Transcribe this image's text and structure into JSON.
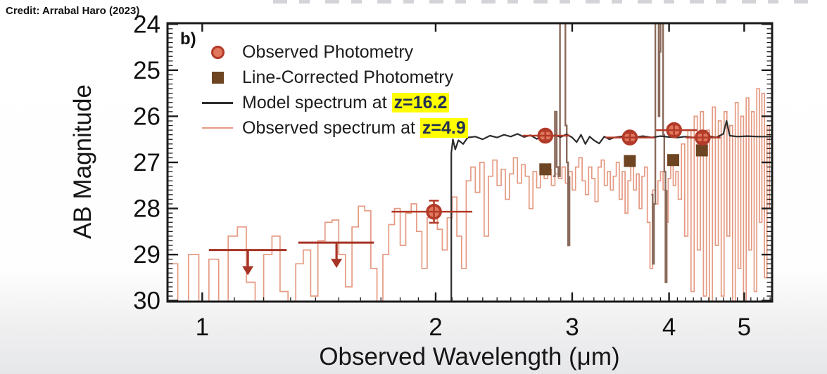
{
  "page": {
    "credit": "Credit: Arrabal Haro (2023)",
    "panel_label": "b)"
  },
  "chart_data": {
    "type": "line",
    "title": "",
    "xlabel": "Observed Wavelength (μm)",
    "ylabel": "AB Magnitude",
    "x_scale": "log",
    "xlim": [
      0.902,
      5.432
    ],
    "ylim": [
      30.02,
      23.98
    ],
    "y_axis_inverted": true,
    "grid": false,
    "legend_position": "upper-left-inside",
    "x_major_ticks": [
      1,
      2,
      3,
      4,
      5
    ],
    "x_minor_tick_step": 0.1,
    "y_major_ticks": [
      24,
      25,
      26,
      27,
      28,
      29,
      30
    ],
    "y_minor_tick_step": 0.1,
    "colors": {
      "observed_spectrum": "#e59a82",
      "emission_lines": "#8a695a",
      "model_spectrum": "#2d2d2d",
      "photometry_fill": "#e0775c",
      "photometry_edge": "#b23a28",
      "line_corrected": "#6d4522",
      "upper_limit": "#a63325",
      "highlight_bg": "#ffff00",
      "highlight_text": "#223055",
      "axis": "#1a1a1a"
    },
    "legend": [
      {
        "marker": "circle",
        "label": "Observed Photometry",
        "highlight": ""
      },
      {
        "marker": "square",
        "label": "Line-Corrected Photometry",
        "highlight": ""
      },
      {
        "marker": "line-dark",
        "label": "Model spectrum at ",
        "highlight": "z=16.2"
      },
      {
        "marker": "line-salmon",
        "label": "Observed spectrum at ",
        "highlight": "z=4.9"
      }
    ],
    "series": {
      "observed_spectrum": {
        "name": "Observed spectrum at z=4.9",
        "style": "step",
        "points": [
          [
            0.902,
            29.2
          ],
          [
            0.93,
            30.2
          ],
          [
            0.96,
            29.0
          ],
          [
            0.99,
            30.3
          ],
          [
            1.02,
            29.1
          ],
          [
            1.05,
            30.1
          ],
          [
            1.08,
            28.6
          ],
          [
            1.11,
            28.4
          ],
          [
            1.14,
            29.6
          ],
          [
            1.17,
            30.25
          ],
          [
            1.2,
            29.0
          ],
          [
            1.23,
            28.6
          ],
          [
            1.26,
            29.8
          ],
          [
            1.29,
            30.3
          ],
          [
            1.32,
            29.2
          ],
          [
            1.35,
            28.9
          ],
          [
            1.38,
            29.9
          ],
          [
            1.41,
            28.7
          ],
          [
            1.44,
            28.3
          ],
          [
            1.47,
            28.25
          ],
          [
            1.5,
            29.0
          ],
          [
            1.53,
            29.7
          ],
          [
            1.56,
            28.4
          ],
          [
            1.59,
            27.95
          ],
          [
            1.62,
            28.05
          ],
          [
            1.65,
            29.3
          ],
          [
            1.68,
            30.2
          ],
          [
            1.71,
            29.0
          ],
          [
            1.74,
            28.35
          ],
          [
            1.77,
            28.0
          ],
          [
            1.8,
            28.8
          ],
          [
            1.83,
            28.1
          ],
          [
            1.86,
            27.9
          ],
          [
            1.89,
            28.5
          ],
          [
            1.92,
            29.3
          ],
          [
            1.95,
            28.2
          ],
          [
            1.98,
            27.95
          ],
          [
            2.01,
            28.45
          ],
          [
            2.04,
            28.9
          ],
          [
            2.07,
            28.2
          ],
          [
            2.1,
            27.75
          ],
          [
            2.13,
            28.6
          ],
          [
            2.16,
            29.3
          ],
          [
            2.19,
            27.4
          ],
          [
            2.22,
            27.1
          ],
          [
            2.25,
            27.65
          ],
          [
            2.28,
            27.0
          ],
          [
            2.31,
            28.6
          ],
          [
            2.34,
            27.3
          ],
          [
            2.37,
            26.95
          ],
          [
            2.4,
            27.5
          ],
          [
            2.43,
            27.15
          ],
          [
            2.46,
            27.8
          ],
          [
            2.49,
            27.25
          ],
          [
            2.52,
            26.9
          ],
          [
            2.55,
            27.45
          ],
          [
            2.58,
            27.05
          ],
          [
            2.61,
            27.3
          ],
          [
            2.64,
            28.0
          ],
          [
            2.67,
            27.2
          ],
          [
            2.7,
            27.55
          ],
          [
            2.73,
            27.05
          ],
          [
            2.76,
            27.35
          ],
          [
            2.79,
            27.15
          ],
          [
            2.82,
            27.5
          ],
          [
            2.85,
            27.25
          ],
          [
            2.88,
            27.35
          ],
          [
            2.91,
            27.1
          ],
          [
            2.94,
            27.45
          ],
          [
            2.97,
            27.2
          ],
          [
            3.0,
            27.6
          ],
          [
            3.03,
            27.1
          ],
          [
            3.06,
            26.9
          ],
          [
            3.09,
            27.4
          ],
          [
            3.12,
            27.7
          ],
          [
            3.15,
            27.1
          ],
          [
            3.18,
            27.35
          ],
          [
            3.21,
            27.85
          ],
          [
            3.24,
            27.1
          ],
          [
            3.27,
            26.95
          ],
          [
            3.3,
            27.5
          ],
          [
            3.33,
            27.2
          ],
          [
            3.36,
            27.6
          ],
          [
            3.39,
            27.3
          ],
          [
            3.42,
            27.0
          ],
          [
            3.45,
            27.8
          ],
          [
            3.48,
            27.2
          ],
          [
            3.51,
            28.1
          ],
          [
            3.54,
            27.4
          ],
          [
            3.57,
            27.0
          ],
          [
            3.6,
            27.6
          ],
          [
            3.63,
            27.25
          ],
          [
            3.66,
            28.0
          ],
          [
            3.69,
            27.3
          ],
          [
            3.72,
            27.1
          ],
          [
            3.75,
            28.3
          ],
          [
            3.78,
            29.3
          ],
          [
            3.81,
            27.6
          ],
          [
            3.84,
            27.9
          ],
          [
            3.87,
            27.4
          ],
          [
            3.9,
            27.2
          ],
          [
            3.93,
            27.6
          ],
          [
            3.96,
            28.3
          ],
          [
            3.99,
            27.35
          ],
          [
            4.02,
            27.0
          ],
          [
            4.05,
            27.5
          ],
          [
            4.08,
            27.2
          ],
          [
            4.11,
            27.8
          ],
          [
            4.15,
            26.6
          ],
          [
            4.19,
            28.6
          ],
          [
            4.23,
            26.3
          ],
          [
            4.27,
            29.8
          ],
          [
            4.31,
            26.0
          ],
          [
            4.35,
            28.9
          ],
          [
            4.39,
            25.9
          ],
          [
            4.43,
            29.9
          ],
          [
            4.47,
            26.3
          ],
          [
            4.51,
            30.2
          ],
          [
            4.55,
            25.8
          ],
          [
            4.59,
            28.8
          ],
          [
            4.63,
            26.1
          ],
          [
            4.67,
            29.9
          ],
          [
            4.71,
            25.9
          ],
          [
            4.75,
            28.6
          ],
          [
            4.79,
            26.2
          ],
          [
            4.83,
            30.1
          ],
          [
            4.87,
            25.7
          ],
          [
            4.91,
            29.3
          ],
          [
            4.95,
            26.0
          ],
          [
            4.99,
            30.2
          ],
          [
            5.03,
            25.6
          ],
          [
            5.07,
            28.9
          ],
          [
            5.11,
            25.9
          ],
          [
            5.15,
            29.8
          ],
          [
            5.19,
            25.4
          ],
          [
            5.23,
            28.3
          ],
          [
            5.27,
            25.5
          ],
          [
            5.31,
            29.5
          ],
          [
            5.35,
            26.2
          ],
          [
            5.39,
            28.0
          ],
          [
            5.43,
            26.6
          ]
        ]
      },
      "emission_lines": {
        "name": "Strong emission lines in observed spectrum",
        "style": "step",
        "segments": [
          [
            [
              2.835,
              27.3
            ],
            [
              2.85,
              25.9
            ],
            [
              2.865,
              27.1
            ],
            [
              2.88,
              27.3
            ],
            [
              2.893,
              23.96
            ],
            [
              2.928,
              23.96
            ],
            [
              2.94,
              26.2
            ],
            [
              2.952,
              27.0
            ],
            [
              2.964,
              28.8
            ],
            [
              2.976,
              27.3
            ]
          ],
          [
            [
              3.795,
              27.7
            ],
            [
              3.81,
              29.2
            ],
            [
              3.825,
              27.9
            ],
            [
              3.84,
              23.96
            ],
            [
              3.868,
              23.96
            ],
            [
              3.878,
              26.0
            ],
            [
              3.888,
              24.6
            ],
            [
              3.9,
              23.96
            ],
            [
              3.918,
              23.96
            ],
            [
              3.93,
              26.4
            ],
            [
              3.944,
              27.2
            ],
            [
              3.958,
              29.6
            ],
            [
              3.972,
              27.6
            ]
          ]
        ]
      },
      "model_spectrum": {
        "name": "Model spectrum at z=16.2",
        "style": "line",
        "break_wavelength": 2.1,
        "points": [
          [
            2.095,
            30.3
          ],
          [
            2.095,
            26.8
          ],
          [
            2.105,
            26.5
          ],
          [
            2.12,
            26.72
          ],
          [
            2.14,
            26.52
          ],
          [
            2.17,
            26.6
          ],
          [
            2.2,
            26.46
          ],
          [
            2.25,
            26.44
          ],
          [
            2.3,
            26.5
          ],
          [
            2.35,
            26.42
          ],
          [
            2.4,
            26.46
          ],
          [
            2.45,
            26.4
          ],
          [
            2.5,
            26.44
          ],
          [
            2.55,
            26.38
          ],
          [
            2.6,
            26.45
          ],
          [
            2.65,
            26.41
          ],
          [
            2.7,
            26.49
          ],
          [
            2.75,
            26.43
          ],
          [
            2.8,
            26.47
          ],
          [
            2.85,
            26.41
          ],
          [
            2.9,
            26.45
          ],
          [
            2.95,
            26.39
          ],
          [
            3.0,
            26.46
          ],
          [
            3.04,
            26.56
          ],
          [
            3.08,
            26.4
          ],
          [
            3.12,
            26.6
          ],
          [
            3.16,
            26.44
          ],
          [
            3.2,
            26.52
          ],
          [
            3.25,
            26.59
          ],
          [
            3.3,
            26.44
          ],
          [
            3.35,
            26.5
          ],
          [
            3.4,
            26.46
          ],
          [
            3.5,
            26.43
          ],
          [
            3.6,
            26.46
          ],
          [
            3.7,
            26.43
          ],
          [
            3.8,
            26.46
          ],
          [
            3.9,
            26.43
          ],
          [
            4.0,
            26.45
          ],
          [
            4.1,
            26.46
          ],
          [
            4.2,
            26.44
          ],
          [
            4.3,
            26.46
          ],
          [
            4.4,
            26.44
          ],
          [
            4.5,
            26.43
          ],
          [
            4.6,
            26.46
          ],
          [
            4.7,
            26.38
          ],
          [
            4.745,
            26.1
          ],
          [
            4.79,
            26.42
          ],
          [
            4.9,
            26.44
          ],
          [
            5.05,
            26.43
          ],
          [
            5.2,
            26.44
          ],
          [
            5.43,
            26.44
          ]
        ]
      },
      "observed_photometry": {
        "name": "Observed Photometry",
        "points": [
          {
            "x": 1.99,
            "y": 28.07,
            "xerr_lo": 0.235,
            "xerr_hi": 0.24,
            "yerr": 0.24
          },
          {
            "x": 2.77,
            "y": 26.42,
            "xerr_lo": 0.18,
            "xerr_hi": 0.21,
            "yerr": 0.1
          },
          {
            "x": 3.56,
            "y": 26.46,
            "xerr_lo": 0.25,
            "xerr_hi": 0.27,
            "yerr": 0.1
          },
          {
            "x": 4.06,
            "y": 26.3,
            "xerr_lo": 0.21,
            "xerr_hi": 0.29,
            "yerr": 0.12
          },
          {
            "x": 4.42,
            "y": 26.46,
            "xerr_lo": 0.22,
            "xerr_hi": 0.24,
            "yerr": 0.1
          }
        ]
      },
      "line_corrected_photometry": {
        "name": "Line-Corrected Photometry",
        "points": [
          {
            "x": 2.77,
            "y": 27.15
          },
          {
            "x": 3.56,
            "y": 26.97
          },
          {
            "x": 4.05,
            "y": 26.95
          },
          {
            "x": 4.41,
            "y": 26.74
          }
        ]
      },
      "upper_limits": {
        "name": "Photometric upper limits",
        "points": [
          {
            "x_lo": 1.02,
            "x_hi": 1.285,
            "y": 28.9,
            "arrow_x": 1.145
          },
          {
            "x_lo": 1.33,
            "x_hi": 1.665,
            "y": 28.74,
            "arrow_x": 1.49
          }
        ]
      }
    }
  }
}
